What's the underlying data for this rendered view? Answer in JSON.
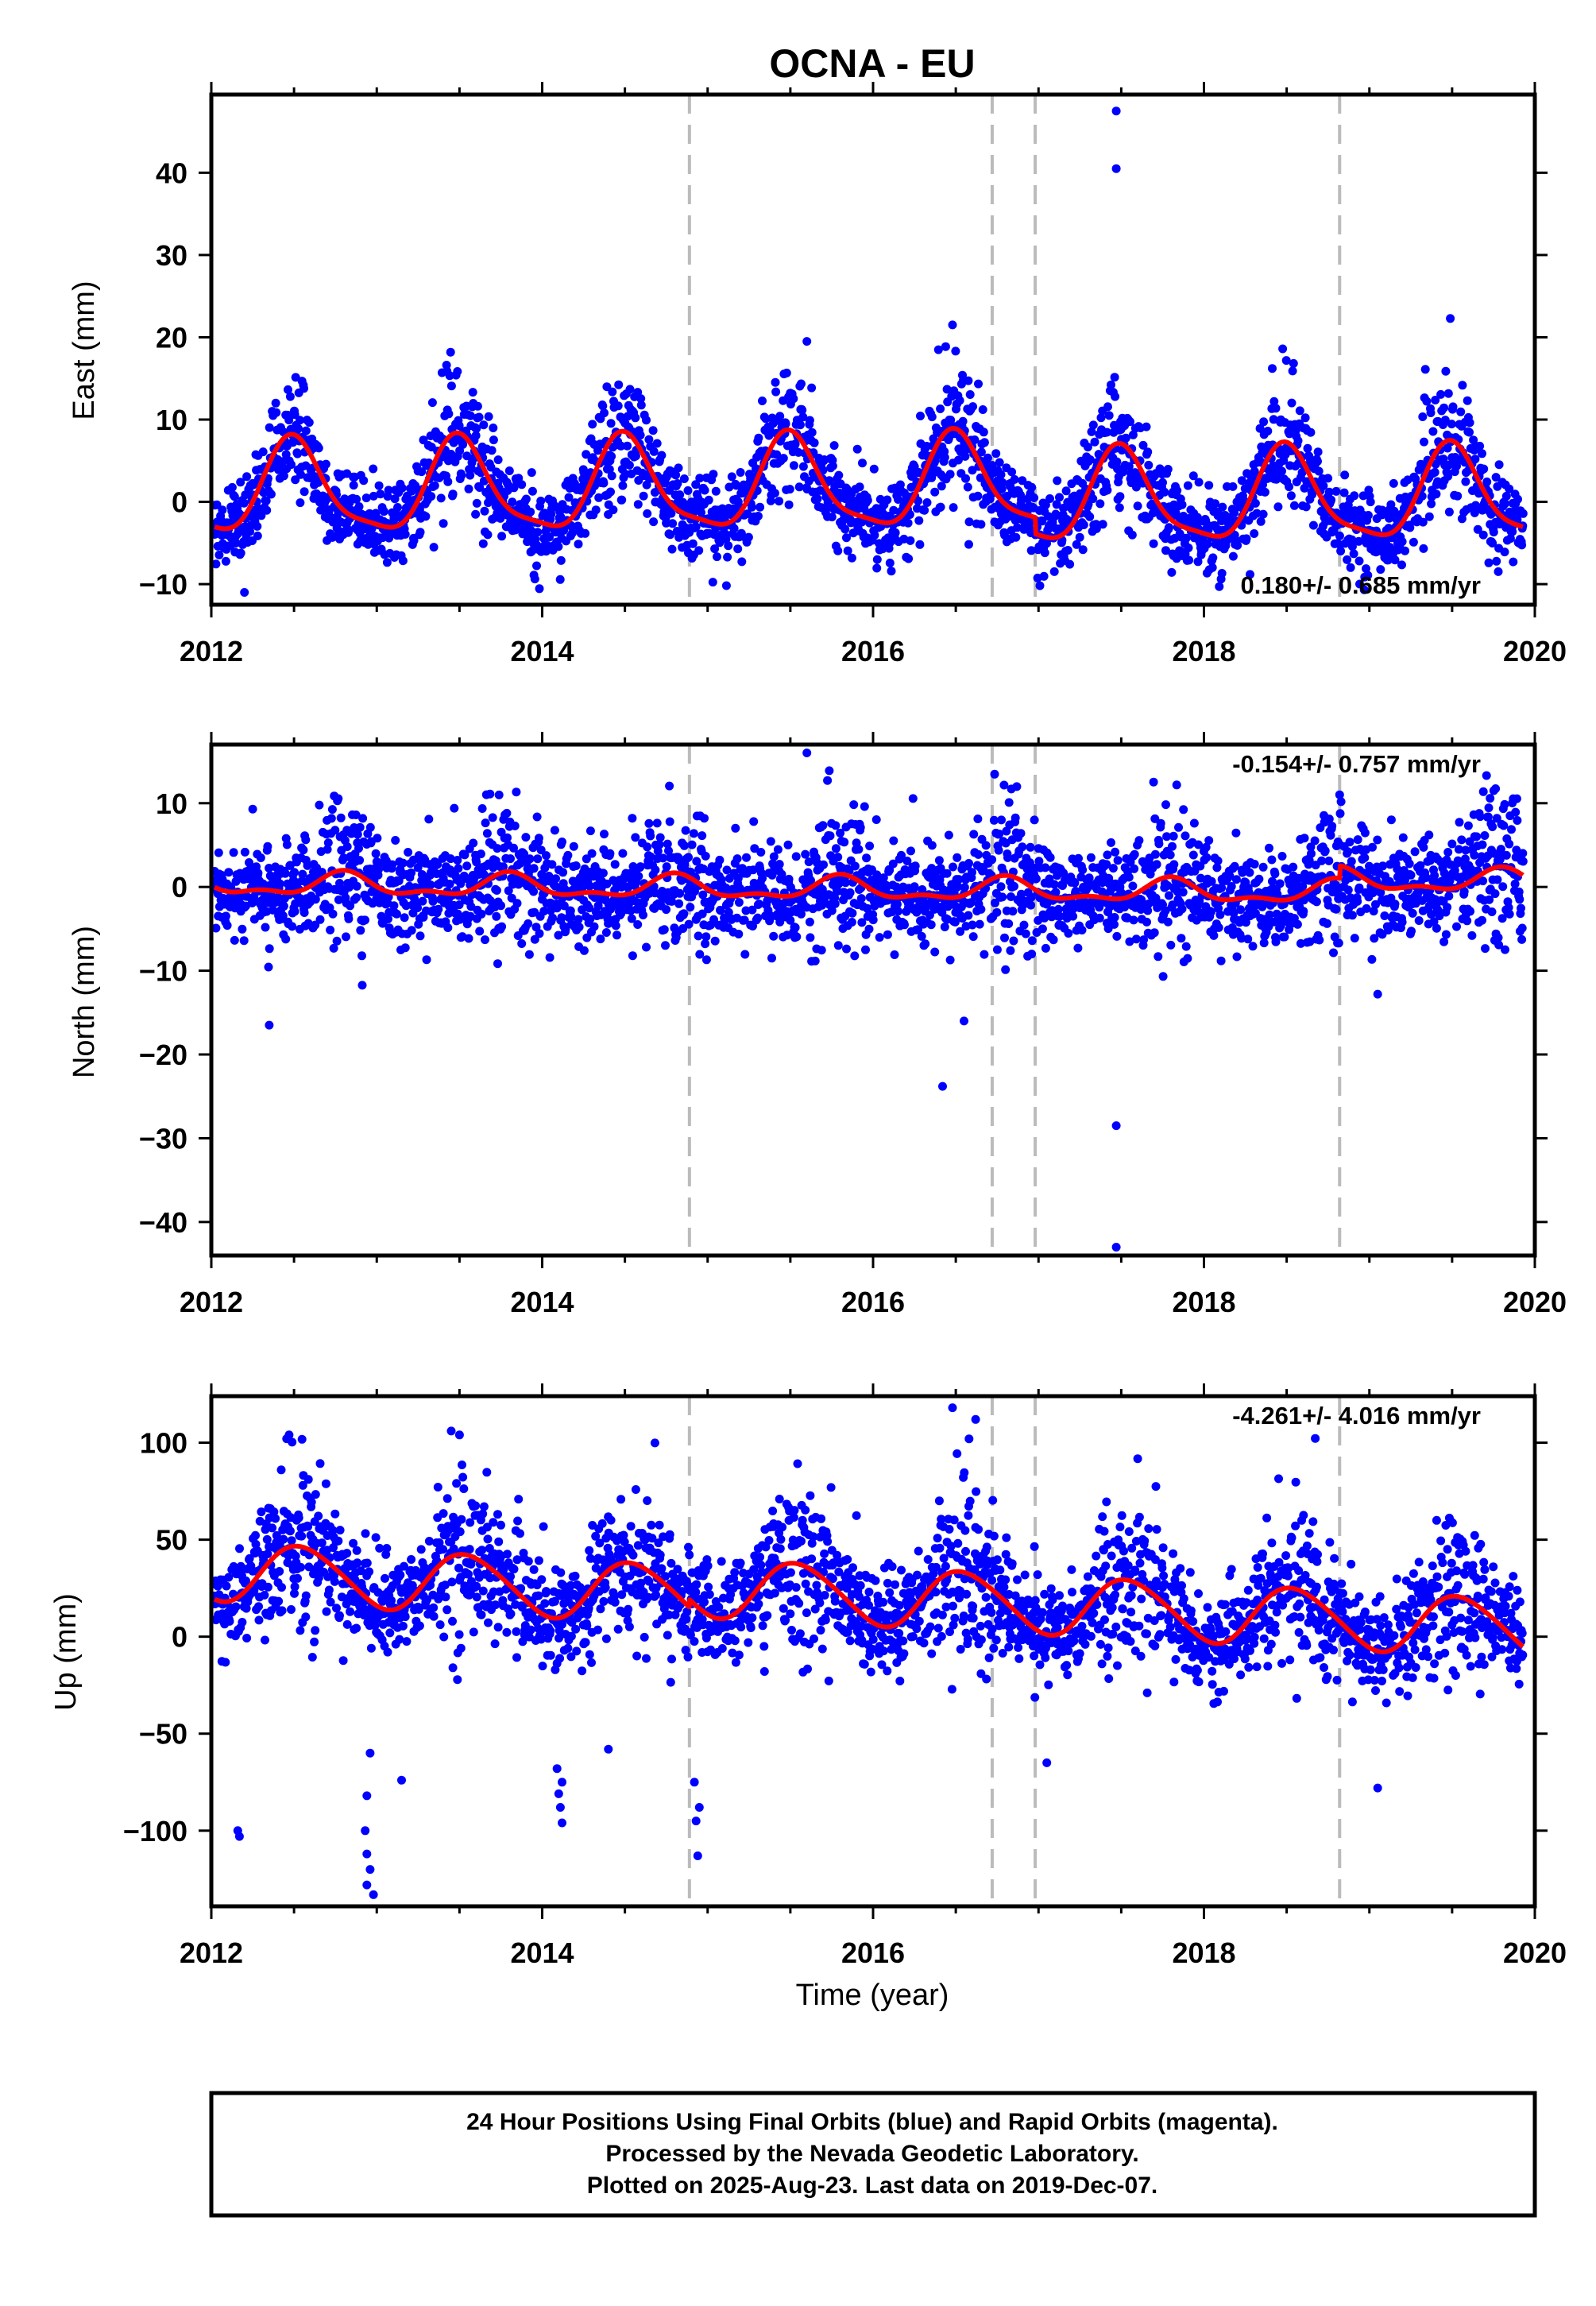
{
  "title": "OCNA - EU",
  "footer": {
    "line1": "24 Hour Positions Using Final Orbits (blue) and Rapid Orbits (magenta).",
    "line2": "Processed by the Nevada Geodetic Laboratory.",
    "line3": "Plotted on 2025-Aug-23. Last data on 2019-Dec-07."
  },
  "colors": {
    "observations": "#0000ff",
    "model": "#ff0000",
    "steps": "#bbbbbb"
  },
  "chart_data": [
    {
      "type": "scatter",
      "panel": "east",
      "ylabel": "East (mm)",
      "xlabel": "",
      "xlim": [
        2012.0,
        2020.0
      ],
      "ylim": [
        -12.5,
        49.5
      ],
      "xticks": [
        2012,
        2014,
        2016,
        2018,
        2020
      ],
      "yticks": [
        -10,
        0,
        10,
        20,
        30,
        40
      ],
      "rate_label": "0.180+/- 0.685 mm/yr",
      "rate_position": "bottom-right",
      "step_epochs": [
        2014.89,
        2016.72,
        2016.98,
        2018.82
      ],
      "first_epoch": 2012.02,
      "last_epoch": 2019.93,
      "model": {
        "name": "model fit",
        "bias": 2.0,
        "trend": 0.18,
        "annual_amplitude": 5.5,
        "annual_peak": 2012.5,
        "semiannual_amplitude": 1.4,
        "semiannual_phase": 2012.47,
        "offsets": [
          [
            2016.98,
            -2.0
          ],
          [
            2018.82,
            0.0
          ]
        ],
        "scatter_sd": 3.2
      },
      "outliers": [
        [
          2017.47,
          47.5
        ],
        [
          2017.47,
          40.5
        ],
        [
          2012.2,
          -11.0
        ],
        [
          2015.6,
          19.5
        ],
        [
          2016.48,
          21.5
        ]
      ]
    },
    {
      "type": "scatter",
      "panel": "north",
      "ylabel": "North (mm)",
      "xlabel": "",
      "xlim": [
        2012.0,
        2020.0
      ],
      "ylim": [
        -44.0,
        17.0
      ],
      "xticks": [
        2012,
        2014,
        2016,
        2018,
        2020
      ],
      "yticks": [
        -40,
        -30,
        -20,
        -10,
        0,
        10
      ],
      "rate_label": "-0.154+/- 0.757 mm/yr",
      "rate_position": "top-right",
      "step_epochs": [
        2014.89,
        2016.72,
        2016.98,
        2018.82
      ],
      "first_epoch": 2012.02,
      "last_epoch": 2019.93,
      "model": {
        "name": "model fit",
        "bias": -0.3,
        "trend": -0.154,
        "annual_amplitude": 1.2,
        "annual_peak": 2012.8,
        "semiannual_amplitude": 0.6,
        "semiannual_phase": 2012.3,
        "offsets": [
          [
            2018.82,
            1.5
          ]
        ],
        "scatter_sd": 3.6
      },
      "outliers": [
        [
          2017.47,
          -43.0
        ],
        [
          2017.47,
          -28.5
        ],
        [
          2016.42,
          -23.8
        ],
        [
          2012.35,
          -16.5
        ],
        [
          2015.6,
          16.0
        ],
        [
          2018.82,
          11.0
        ],
        [
          2019.05,
          -12.8
        ],
        [
          2016.55,
          -16.0
        ]
      ]
    },
    {
      "type": "scatter",
      "panel": "up",
      "ylabel": "Up (mm)",
      "xlabel": "Time (year)",
      "xlim": [
        2012.0,
        2020.0
      ],
      "ylim": [
        -139.0,
        124.0
      ],
      "xticks": [
        2012,
        2014,
        2016,
        2018,
        2020
      ],
      "yticks": [
        -100,
        -50,
        0,
        50,
        100
      ],
      "rate_label": "-4.261+/- 4.016 mm/yr",
      "rate_position": "top-right",
      "step_epochs": [
        2014.89,
        2016.72,
        2016.98,
        2018.82
      ],
      "first_epoch": 2012.02,
      "last_epoch": 2019.93,
      "model": {
        "name": "model fit",
        "bias": 17.0,
        "trend": -4.261,
        "annual_amplitude": 15.0,
        "annual_peak": 2012.55,
        "semiannual_amplitude": 1.5,
        "semiannual_phase": 2012.4,
        "offsets": [
          [
            2014.89,
            4.0
          ]
        ],
        "scatter_sd": 17.0
      },
      "outliers": [
        [
          2012.94,
          -128.0
        ],
        [
          2012.94,
          -112.0
        ],
        [
          2012.96,
          -120.0
        ],
        [
          2012.93,
          -100.0
        ],
        [
          2012.94,
          -82.0
        ],
        [
          2012.96,
          -60.0
        ],
        [
          2012.98,
          -133.0
        ],
        [
          2012.16,
          -100.0
        ],
        [
          2012.17,
          -103.0
        ],
        [
          2014.12,
          -96.0
        ],
        [
          2014.11,
          -88.0
        ],
        [
          2014.1,
          -81.0
        ],
        [
          2014.12,
          -75.0
        ],
        [
          2014.09,
          -68.0
        ],
        [
          2014.94,
          -113.0
        ],
        [
          2014.93,
          -95.0
        ],
        [
          2014.95,
          -88.0
        ],
        [
          2014.92,
          -75.0
        ],
        [
          2016.48,
          118.0
        ],
        [
          2016.62,
          112.0
        ],
        [
          2016.58,
          102.0
        ],
        [
          2013.45,
          106.0
        ],
        [
          2013.5,
          104.0
        ],
        [
          2012.47,
          104.0
        ],
        [
          2019.05,
          -78.0
        ],
        [
          2013.15,
          -74.0
        ],
        [
          2014.4,
          -58.0
        ],
        [
          2017.05,
          -65.0
        ]
      ]
    }
  ]
}
